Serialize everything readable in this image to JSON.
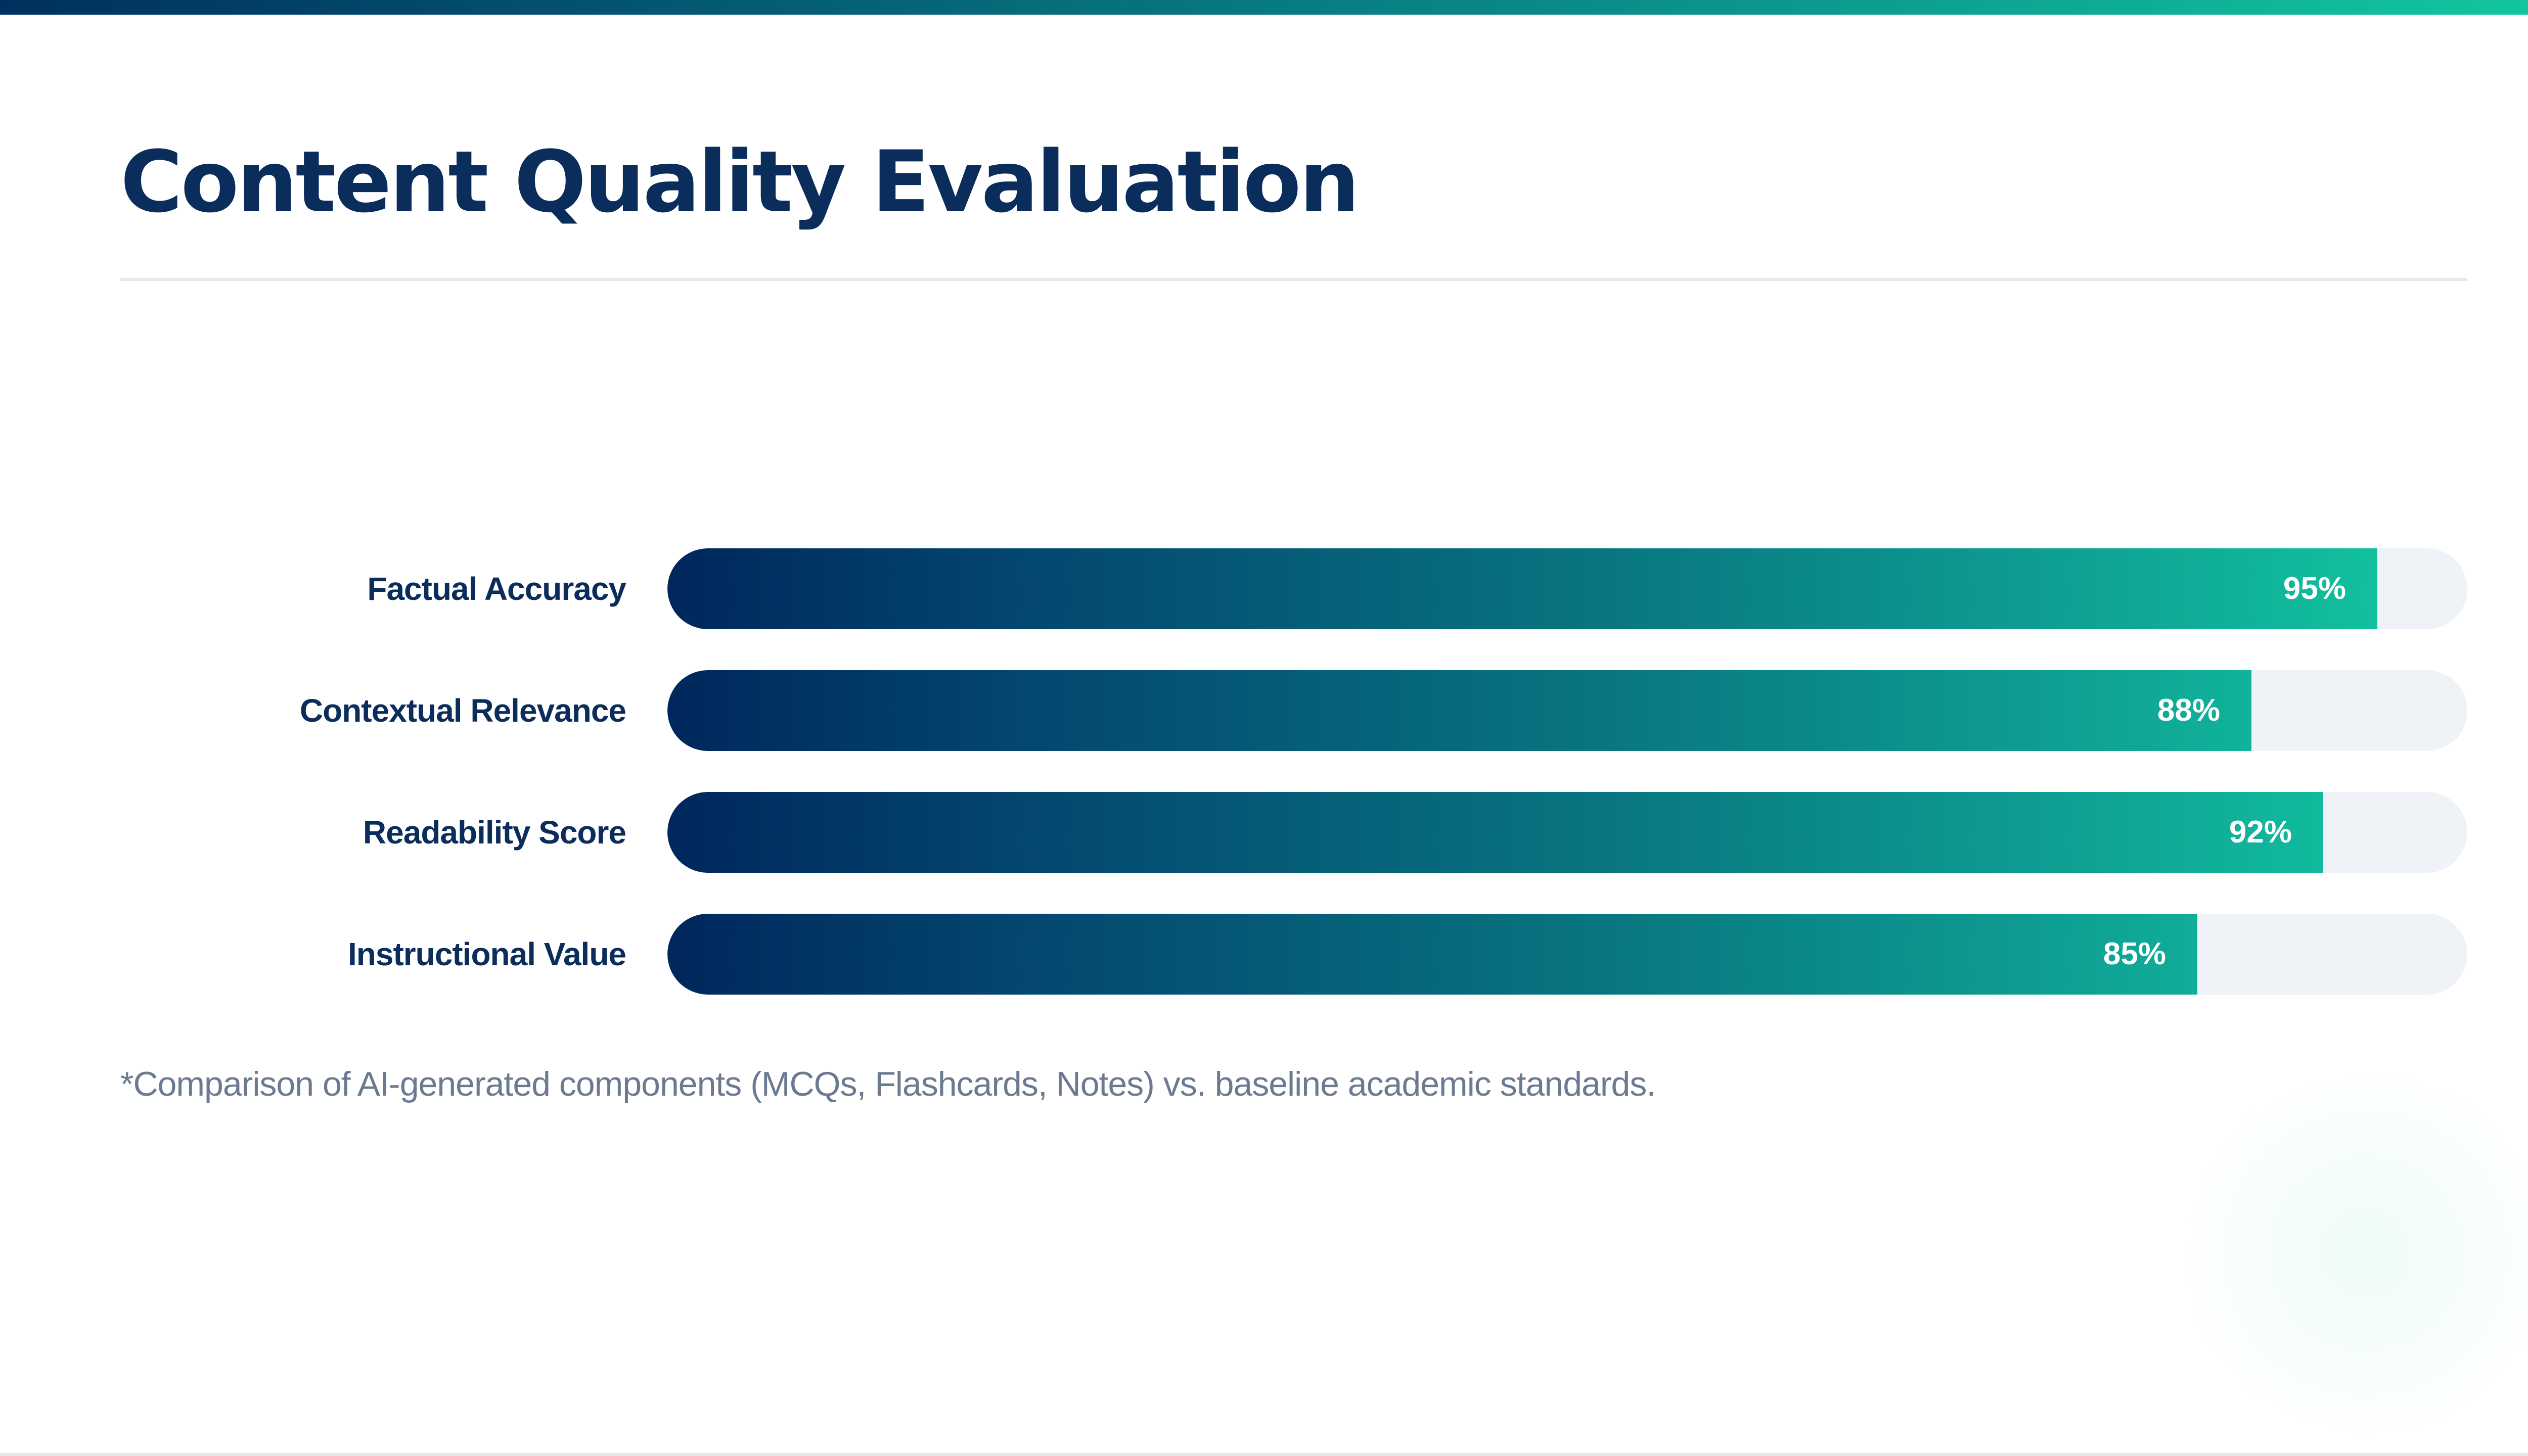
{
  "slide": {
    "title": "Content Quality Evaluation",
    "footnote": "*Comparison of AI-generated components (MCQs, Flashcards, Notes) vs. baseline academic standards."
  },
  "colors": {
    "title": "#0b2d5c",
    "gradient_start": "#00275c",
    "gradient_end": "#12c9a0",
    "track": "#eff2f6",
    "footnote": "#6b7a90"
  },
  "chart_data": {
    "type": "bar",
    "orientation": "horizontal",
    "title": "Content Quality Evaluation",
    "categories": [
      "Factual Accuracy",
      "Contextual Relevance",
      "Readability Score",
      "Instructional Value"
    ],
    "values": [
      95,
      88,
      92,
      85
    ],
    "value_labels": [
      "95%",
      "88%",
      "92%",
      "85%"
    ],
    "unit": "%",
    "xlim": [
      0,
      100
    ],
    "xlabel": "",
    "ylabel": "",
    "grid": false,
    "legend": "none"
  }
}
